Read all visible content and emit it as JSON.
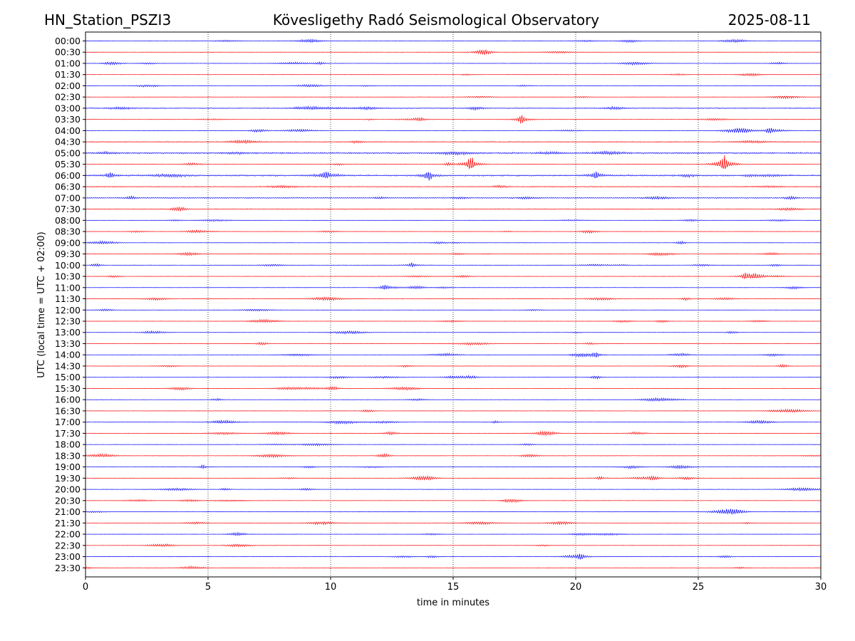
{
  "header": {
    "station": "HN_Station_PSZI3",
    "observatory": "Kövesligethy Radó Seismological Observatory",
    "date": "2025-08-11"
  },
  "chart_data": {
    "type": "line",
    "title": "Kövesligethy Radó Seismological Observatory",
    "xlabel": "time in minutes",
    "ylabel": "UTC (local time = UTC + 02:00)",
    "xlim": [
      0,
      30
    ],
    "x_ticks": [
      0,
      5,
      10,
      15,
      20,
      25,
      30
    ],
    "x_tick_labels": [
      "0",
      "5",
      "10",
      "15",
      "20",
      "25",
      "30"
    ],
    "row_labels": [
      "00:00",
      "00:30",
      "01:00",
      "01:30",
      "02:00",
      "02:30",
      "03:00",
      "03:30",
      "04:00",
      "04:30",
      "05:00",
      "05:30",
      "06:00",
      "06:30",
      "07:00",
      "07:30",
      "08:00",
      "08:30",
      "09:00",
      "09:30",
      "10:00",
      "10:30",
      "11:00",
      "11:30",
      "12:00",
      "12:30",
      "13:00",
      "13:30",
      "14:00",
      "14:30",
      "15:00",
      "15:30",
      "16:00",
      "16:30",
      "17:00",
      "17:30",
      "18:00",
      "18:30",
      "19:00",
      "19:30",
      "20:00",
      "20:30",
      "21:00",
      "21:30",
      "22:00",
      "22:30",
      "23:00",
      "23:30"
    ],
    "row_colors": [
      "#0000ff",
      "#ff0000"
    ],
    "grid": "vertical dotted at x ticks",
    "events": [
      {
        "row": "03:30",
        "x": 17.8,
        "amplitude": 0.55
      },
      {
        "row": "04:00",
        "x": 27.9,
        "amplitude": 0.35
      },
      {
        "row": "05:30",
        "x": 15.7,
        "amplitude": 1.0
      },
      {
        "row": "05:30",
        "x": 26.05,
        "amplitude": 1.0
      },
      {
        "row": "05:30",
        "x": 14.8,
        "amplitude": 0.2
      },
      {
        "row": "06:00",
        "x": 14.0,
        "amplitude": 0.55
      },
      {
        "row": "06:00",
        "x": 20.8,
        "amplitude": 0.45
      },
      {
        "row": "06:00",
        "x": 9.8,
        "amplitude": 0.35
      },
      {
        "row": "06:00",
        "x": 1.0,
        "amplitude": 0.3
      },
      {
        "row": "10:00",
        "x": 13.3,
        "amplitude": 0.25
      },
      {
        "row": "10:30",
        "x": 26.9,
        "amplitude": 0.25
      },
      {
        "row": "11:00",
        "x": 12.2,
        "amplitude": 0.25
      },
      {
        "row": "14:00",
        "x": 20.8,
        "amplitude": 0.3
      },
      {
        "row": "17:00",
        "x": 16.7,
        "amplitude": 0.15
      },
      {
        "row": "19:00",
        "x": 4.8,
        "amplitude": 0.2
      },
      {
        "row": "19:30",
        "x": 21.0,
        "amplitude": 0.2
      },
      {
        "row": "23:00",
        "x": 20.2,
        "amplitude": 0.3
      }
    ],
    "active_rows": [
      {
        "row": "03:00",
        "level": 0.12
      },
      {
        "row": "04:30",
        "level": 0.12
      },
      {
        "row": "05:00",
        "level": 0.18
      },
      {
        "row": "06:00",
        "level": 0.18
      },
      {
        "row": "06:30",
        "level": 0.12
      },
      {
        "row": "07:00",
        "level": 0.12
      },
      {
        "row": "07:30",
        "level": 0.1
      }
    ]
  }
}
